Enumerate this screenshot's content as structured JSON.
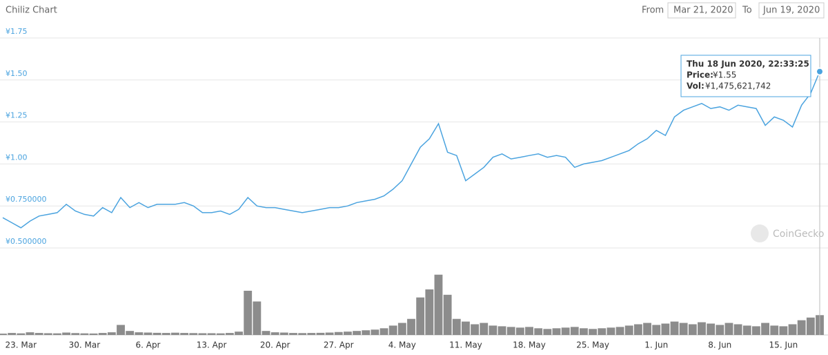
{
  "header": {
    "title": "Chiliz Chart",
    "from_label": "From",
    "from": "Mar 21, 2020",
    "to_label": "To",
    "to": "Jun 19, 2020"
  },
  "watermark": "CoinGecko",
  "tooltip": {
    "date": "Thu 18 Jun 2020, 22:33:25",
    "price_label": "Price:",
    "price": "¥1.55",
    "vol_label": "Vol:",
    "vol": "¥1,475,621,742"
  },
  "chart_data": {
    "type": "line",
    "categories": [
      null,
      null,
      "23. Mar",
      null,
      null,
      null,
      null,
      null,
      null,
      "30. Mar",
      null,
      null,
      null,
      null,
      null,
      null,
      "6. Apr",
      null,
      null,
      null,
      null,
      null,
      null,
      "13. Apr",
      null,
      null,
      null,
      null,
      null,
      null,
      "20. Apr",
      null,
      null,
      null,
      null,
      null,
      null,
      "27. Apr",
      null,
      null,
      null,
      null,
      null,
      null,
      "4. May",
      null,
      null,
      null,
      null,
      null,
      null,
      "11. May",
      null,
      null,
      null,
      null,
      null,
      null,
      "18. May",
      null,
      null,
      null,
      null,
      null,
      null,
      "25. May",
      null,
      null,
      null,
      null,
      null,
      null,
      "1. Jun",
      null,
      null,
      null,
      null,
      null,
      null,
      "8. Jun",
      null,
      null,
      null,
      null,
      null,
      null,
      "15. Jun",
      null,
      null,
      null,
      null
    ],
    "series": [
      {
        "color": "#4aa3df",
        "values": [
          0.68,
          0.65,
          0.62,
          0.66,
          0.69,
          0.7,
          0.71,
          0.76,
          0.72,
          0.7,
          0.69,
          0.74,
          0.71,
          0.8,
          0.74,
          0.77,
          0.74,
          0.76,
          0.76,
          0.76,
          0.77,
          0.75,
          0.71,
          0.71,
          0.72,
          0.7,
          0.73,
          0.8,
          0.75,
          0.74,
          0.74,
          0.73,
          0.72,
          0.71,
          0.72,
          0.73,
          0.74,
          0.74,
          0.75,
          0.77,
          0.78,
          0.79,
          0.81,
          0.85,
          0.9,
          1.0,
          1.1,
          1.15,
          1.24,
          1.07,
          1.05,
          0.9,
          0.94,
          0.98,
          1.04,
          1.06,
          1.03,
          1.04,
          1.05,
          1.06,
          1.04,
          1.05,
          1.04,
          0.98,
          1.0,
          1.01,
          1.02,
          1.04,
          1.06,
          1.08,
          1.12,
          1.15,
          1.2,
          1.17,
          1.28,
          1.32,
          1.34,
          1.36,
          1.33,
          1.34,
          1.32,
          1.35,
          1.34,
          1.33,
          1.23,
          1.28,
          1.26,
          1.22,
          1.35,
          1.42,
          1.55
        ]
      },
      {
        "type": "bar",
        "axis": "y2",
        "color": "#8c8c8c",
        "values": [
          100000000,
          150000000,
          120000000,
          200000000,
          150000000,
          130000000,
          120000000,
          180000000,
          140000000,
          120000000,
          110000000,
          150000000,
          200000000,
          750000000,
          300000000,
          200000000,
          180000000,
          160000000,
          150000000,
          170000000,
          150000000,
          140000000,
          130000000,
          130000000,
          120000000,
          150000000,
          250000000,
          3300000000,
          2500000000,
          300000000,
          200000000,
          180000000,
          150000000,
          140000000,
          150000000,
          160000000,
          180000000,
          220000000,
          250000000,
          300000000,
          350000000,
          400000000,
          500000000,
          700000000,
          900000000,
          1200000000,
          2800000000,
          3400000000,
          4500000000,
          3000000000,
          1200000000,
          1000000000,
          800000000,
          900000000,
          700000000,
          650000000,
          600000000,
          550000000,
          600000000,
          500000000,
          450000000,
          500000000,
          550000000,
          600000000,
          500000000,
          450000000,
          500000000,
          550000000,
          600000000,
          700000000,
          800000000,
          900000000,
          750000000,
          850000000,
          1000000000,
          900000000,
          800000000,
          950000000,
          850000000,
          750000000,
          900000000,
          800000000,
          700000000,
          650000000,
          900000000,
          700000000,
          650000000,
          800000000,
          1100000000,
          1300000000,
          1480000000
        ]
      }
    ],
    "ylim": [
      0.5,
      1.75
    ],
    "yticks": [
      {
        "value": 0.5,
        "label": "¥0.500000"
      },
      {
        "value": 0.75,
        "label": "¥0.750000"
      },
      {
        "value": 1,
        "label": "¥1.00"
      },
      {
        "value": 1.25,
        "label": "¥1.25"
      },
      {
        "value": 1.5,
        "label": "¥1.50"
      },
      {
        "value": 1.75,
        "label": "¥1.75"
      }
    ],
    "y2lim": [
      0,
      5000000000
    ],
    "grid": true
  }
}
